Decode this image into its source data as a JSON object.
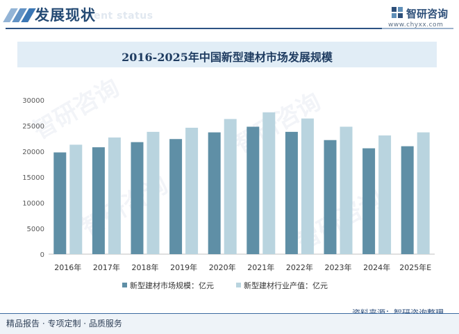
{
  "header": {
    "section_title": "发展现状",
    "section_subtitle": "ment status",
    "logo_text": "智研咨询",
    "logo_url": "www.chyxx.com"
  },
  "colors": {
    "series1": "#5f8fa6",
    "series2": "#b9d4df",
    "accent": "#2c5283"
  },
  "chart_data": {
    "type": "bar",
    "title": "2016-2025年中国新型建材市场发展规模",
    "categories": [
      "2016年",
      "2017年",
      "2018年",
      "2019年",
      "2020年",
      "2021年",
      "2022年",
      "2023年",
      "2024年",
      "2025年E"
    ],
    "series": [
      {
        "name": "新型建材市场规模：亿元",
        "values": [
          19800,
          20800,
          21800,
          22400,
          23700,
          24800,
          23800,
          22200,
          20600,
          21000
        ]
      },
      {
        "name": "新型建材行业产值：亿元",
        "values": [
          21300,
          22700,
          23800,
          24600,
          26300,
          27600,
          26400,
          24800,
          23100,
          23700
        ]
      }
    ],
    "ylim": [
      0,
      30000
    ],
    "yticks": [
      "0",
      "5000",
      "10000",
      "15000",
      "20000",
      "25000",
      "30000"
    ],
    "grid": false,
    "legend_position": "bottom"
  },
  "footer": {
    "source": "资料来源：智研咨询整理",
    "tagline": "精品报告 · 专项定制 · 品质服务"
  }
}
